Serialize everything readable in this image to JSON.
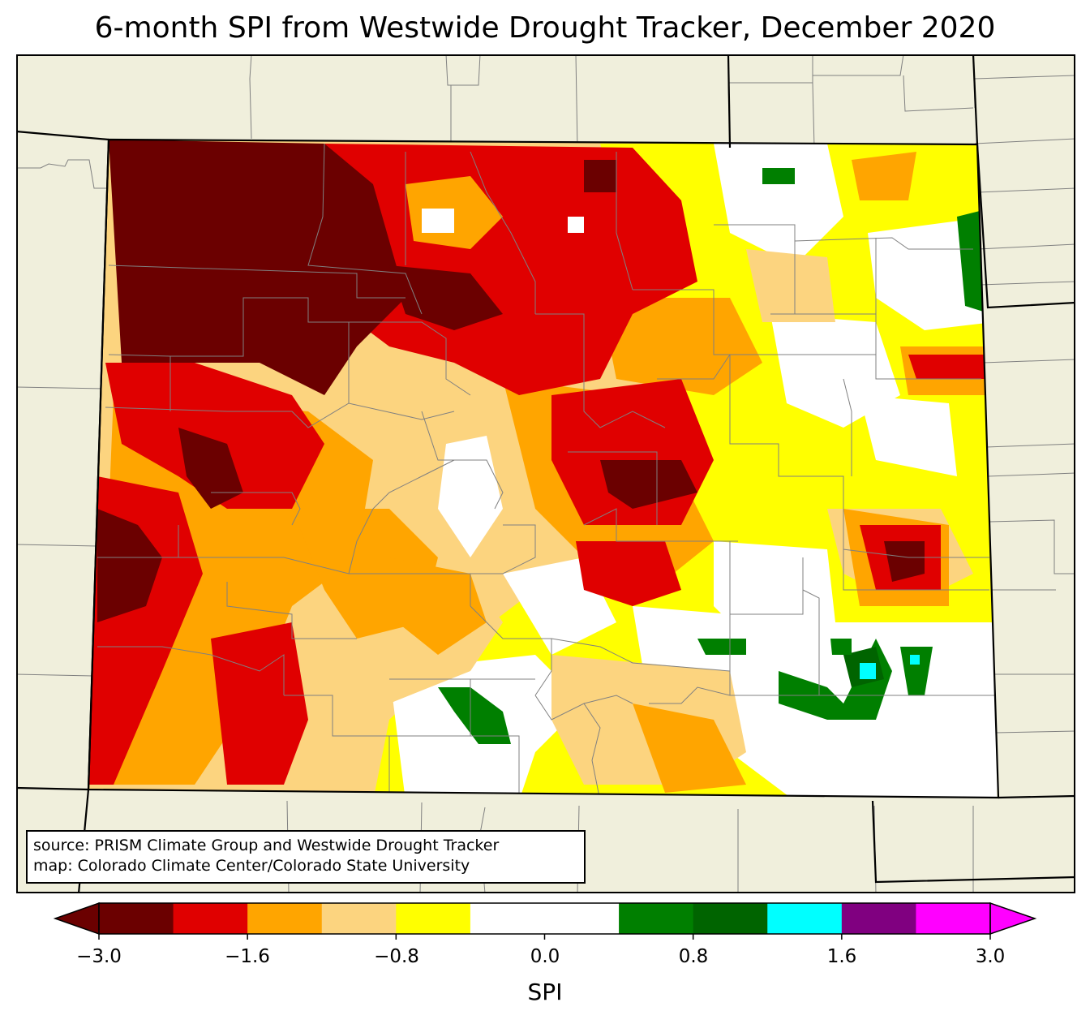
{
  "title": "6-month SPI from Westwide Drought Tracker, December 2020",
  "source": {
    "line1": "source: PRISM Climate Group and Westwide Drought Tracker",
    "line2": "map: Colorado Climate Center/Colorado State University"
  },
  "colorbar": {
    "label": "SPI",
    "ticks": [
      "−3.0",
      "−1.6",
      "−0.8",
      "0.0",
      "0.8",
      "1.6",
      "3.0"
    ],
    "colors": [
      "#6b0000",
      "#e00000",
      "#ffa500",
      "#fcd47f",
      "#ffff00",
      "#ffffff",
      "#ffffff",
      "#007f00",
      "#006400",
      "#00ffff",
      "#800080",
      "#ff00ff"
    ]
  },
  "colors": {
    "background": "#f0efdc",
    "extreme_dry": "#6b0000",
    "severe_dry": "#e00000",
    "moderate_dry": "#ffa500",
    "mild_dry": "#fcd47f",
    "abnormal_dry": "#ffff00",
    "near_normal": "#ffffff",
    "moderate_wet": "#007f00",
    "severe_wet": "#006400",
    "extreme_wet": "#00ffff"
  }
}
